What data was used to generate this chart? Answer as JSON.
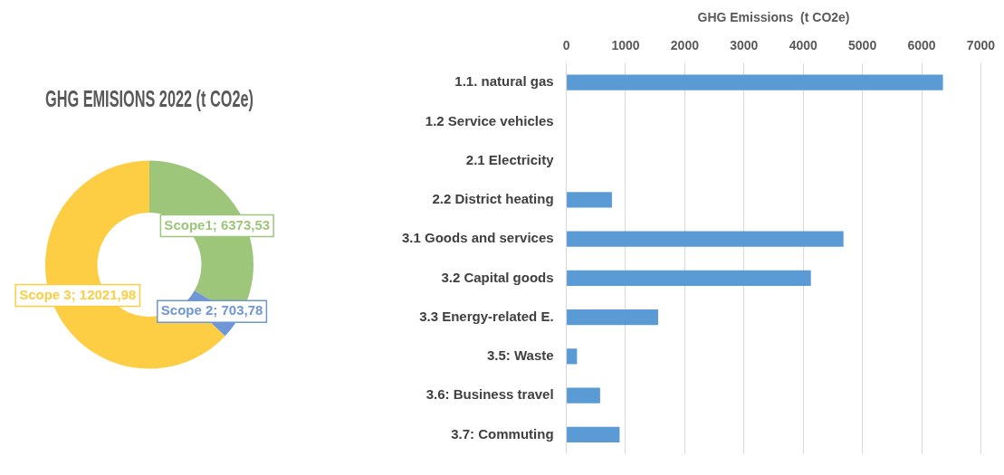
{
  "chart_data": [
    {
      "type": "donut",
      "title": "GHG EMISIONS 2022 (t CO2e)",
      "categories": [
        "Scope1",
        "Scope 2",
        "Scope 3"
      ],
      "values": [
        6373.53,
        703.78,
        12021.98
      ],
      "colors": [
        "#9dc67a",
        "#6f96d6",
        "#fdcd44"
      ],
      "value_labels": [
        "; 6373,53",
        "; 703,78",
        "; 12021,98"
      ],
      "legend": false
    },
    {
      "type": "bar",
      "orientation": "horizontal",
      "xlabel": "GHG Emissions  (t CO2e)",
      "categories": [
        "1.1. natural gas",
        "1.2 Service vehicles",
        "2.1 Electricity",
        "2.2 District heating",
        "3.1 Goods and services",
        "3.2 Capital goods",
        "3.3 Energy-related E.",
        "3.5: Waste",
        "3.6: Business travel",
        "3.7: Commuting"
      ],
      "values": [
        6360,
        0,
        0,
        770,
        4680,
        4130,
        1550,
        180,
        570,
        900
      ],
      "color": "#5b9bd5",
      "xlim": [
        0,
        7000
      ],
      "xticks": [
        0,
        1000,
        2000,
        3000,
        4000,
        5000,
        6000,
        7000
      ],
      "grid": "x",
      "legend": false
    }
  ]
}
